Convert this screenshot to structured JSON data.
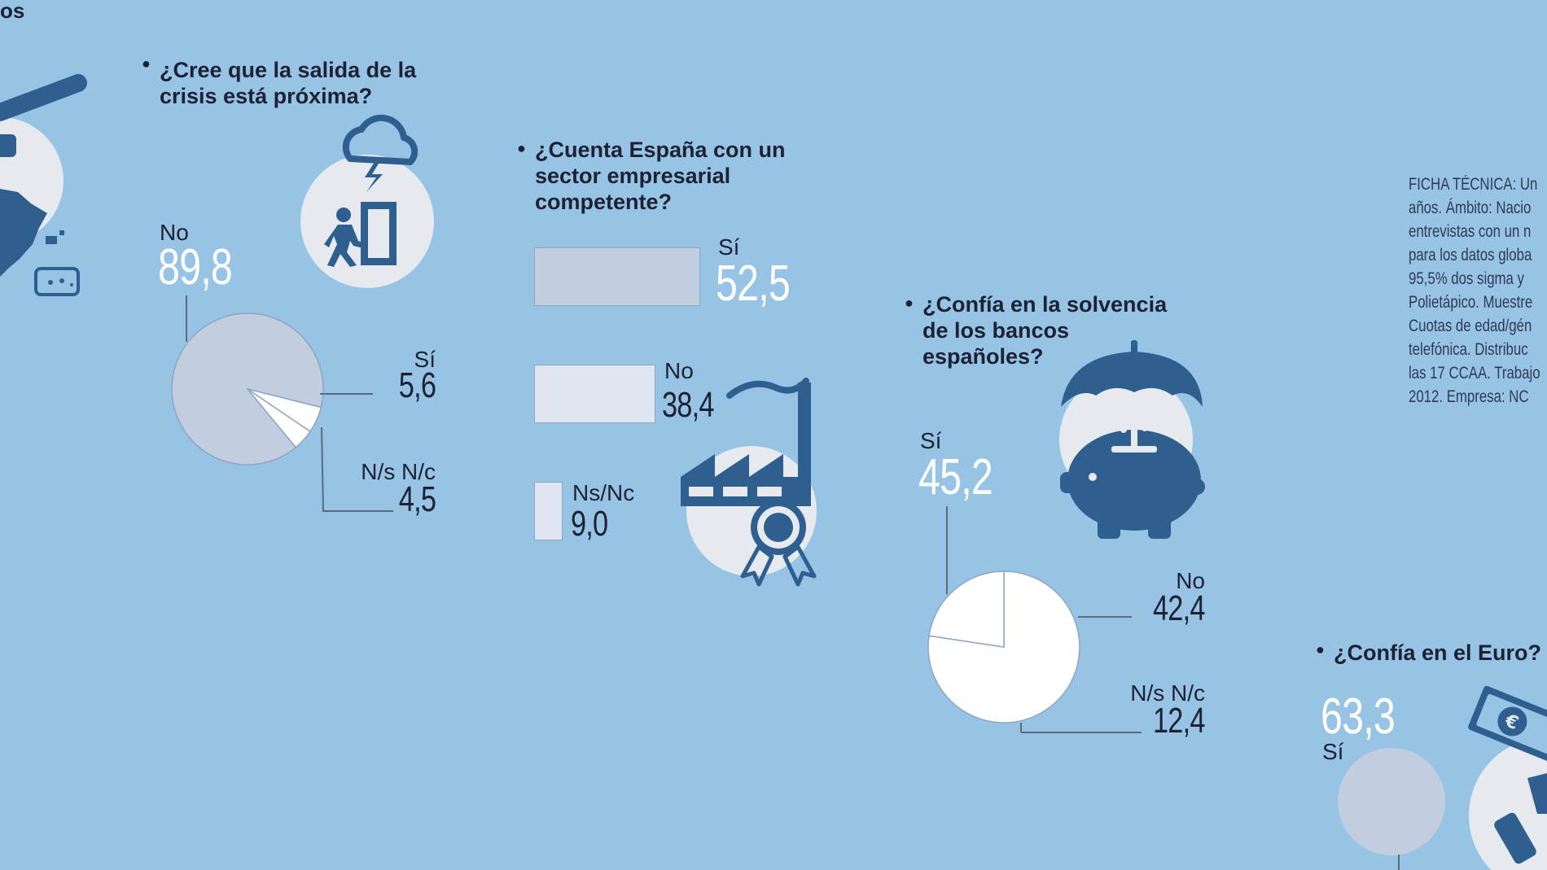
{
  "header": {
    "fragment": "os"
  },
  "colors": {
    "background": "#97c4e5",
    "dark": "#2f5f8f",
    "slice_main": "#c2cde0",
    "slice_white": "#ffffff",
    "bar_light": "#dfe6f1"
  },
  "ficha": {
    "lines": [
      "FICHA TÉCNICA: Un",
      "años. Ámbito: Nacio",
      "entrevistas con un n",
      "para los datos globa",
      "95,5% dos sigma y",
      "Polietápico. Muestre",
      "Cuotas de edad/gén",
      "telefónica. Distribuc",
      "las 17 CCAA. Trabajo",
      "2012. Empresa: NC"
    ]
  },
  "chart_data": [
    {
      "type": "pie",
      "title": "¿Cree que la salida de la crisis está próxima?",
      "title_lines": [
        "¿Cree que la salida de la",
        "crisis está próxima?"
      ],
      "categories": [
        "No",
        "Sí",
        "N/s N/c"
      ],
      "values": [
        89.8,
        5.6,
        4.5
      ],
      "value_labels": [
        "89,8",
        "5,6",
        "4,5"
      ],
      "icon": "storm-exit-icon"
    },
    {
      "type": "bar",
      "title": "¿Cuenta España con un sector empresarial competente?",
      "title_lines": [
        "¿Cuenta España con un",
        "sector empresarial",
        "competente?"
      ],
      "categories": [
        "Sí",
        "No",
        "Ns/Nc"
      ],
      "values": [
        52.5,
        38.4,
        9.0
      ],
      "value_labels": [
        "52,5",
        "38,4",
        "9,0"
      ],
      "icon": "factory-award-icon"
    },
    {
      "type": "pie",
      "title": "¿Confía en la solvencia de los bancos españoles?",
      "title_lines": [
        "¿Confía en la solvencia",
        "de los bancos",
        "españoles?"
      ],
      "categories": [
        "Sí",
        "No",
        "N/s N/c"
      ],
      "values": [
        45.2,
        42.4,
        12.4
      ],
      "value_labels": [
        "45,2",
        "42,4",
        "12,4"
      ],
      "icon": "piggy-umbrella-icon"
    },
    {
      "type": "pie",
      "title": "¿Confía en el Euro?",
      "title_lines": [
        "¿Confía en el Euro?"
      ],
      "categories": [
        "Sí"
      ],
      "values": [
        63.3
      ],
      "value_labels": [
        "63,3"
      ],
      "icon": "euro-banknote-icon"
    }
  ]
}
